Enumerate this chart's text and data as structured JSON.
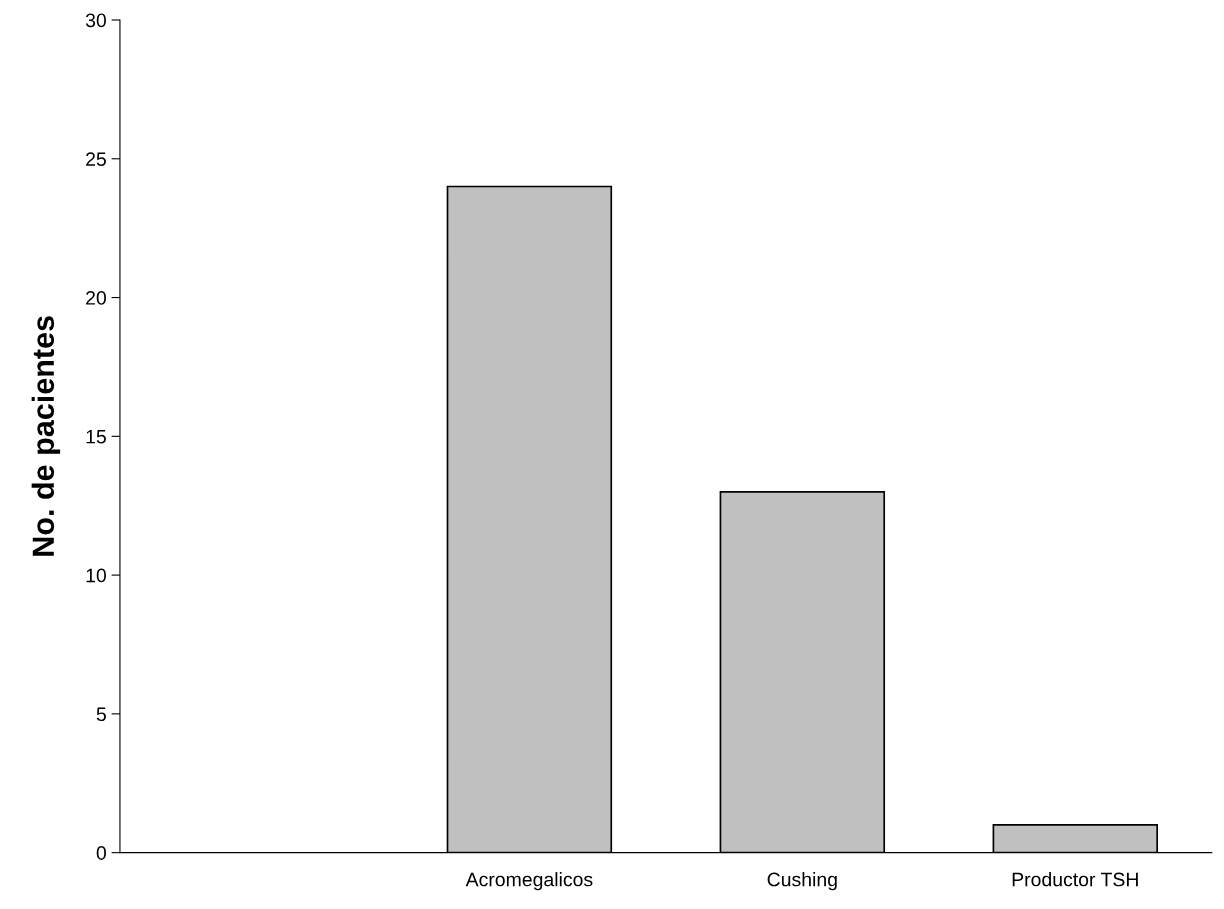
{
  "chart_data": {
    "type": "bar",
    "ylabel": "No. de pacientes",
    "categories": [
      null,
      "Acromegalicos",
      "Cushing",
      "Productor TSH"
    ],
    "values": [
      null,
      24,
      13,
      1
    ],
    "color": "#c0c0c0",
    "ylim": [
      0,
      30
    ],
    "yticks": [
      0,
      5,
      10,
      15,
      20,
      25,
      30
    ],
    "grid": false,
    "legend": false
  }
}
